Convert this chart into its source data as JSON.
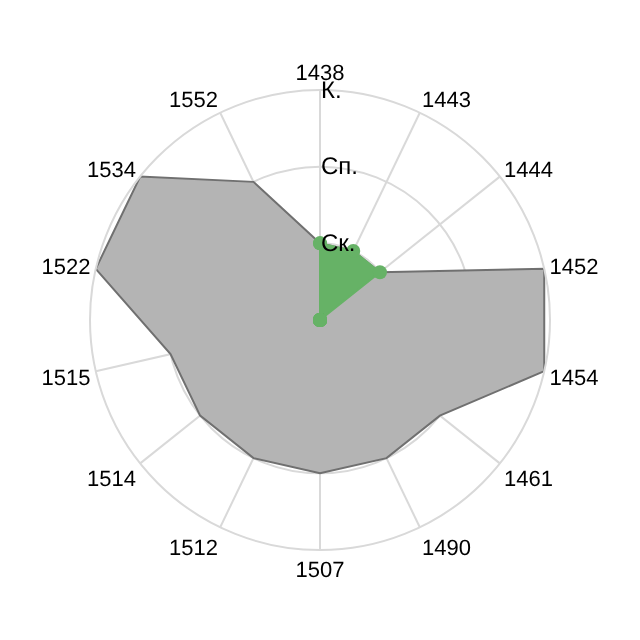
{
  "chart_data": {
    "type": "radar",
    "categories": [
      "1438",
      "1443",
      "1444",
      "1452",
      "1454",
      "1461",
      "1490",
      "1507",
      "1512",
      "1514",
      "1515",
      "1522",
      "1534",
      "1552"
    ],
    "series": [
      {
        "color": "#b4b4b4",
        "values": [
          1,
          1,
          1,
          3,
          3,
          2,
          2,
          2,
          2,
          2,
          2,
          3,
          3,
          2
        ]
      },
      {
        "color": "#66b266",
        "values": [
          1,
          1,
          1,
          0,
          0,
          0,
          0,
          0,
          0,
          0,
          0,
          0,
          0,
          0
        ],
        "marker": "circle"
      }
    ],
    "ylim": [
      0,
      3
    ],
    "yticks": [
      {
        "value": 1,
        "label": "Ск."
      },
      {
        "value": 2,
        "label": "Сп."
      },
      {
        "value": 3,
        "label": "К."
      }
    ],
    "grid": true
  }
}
